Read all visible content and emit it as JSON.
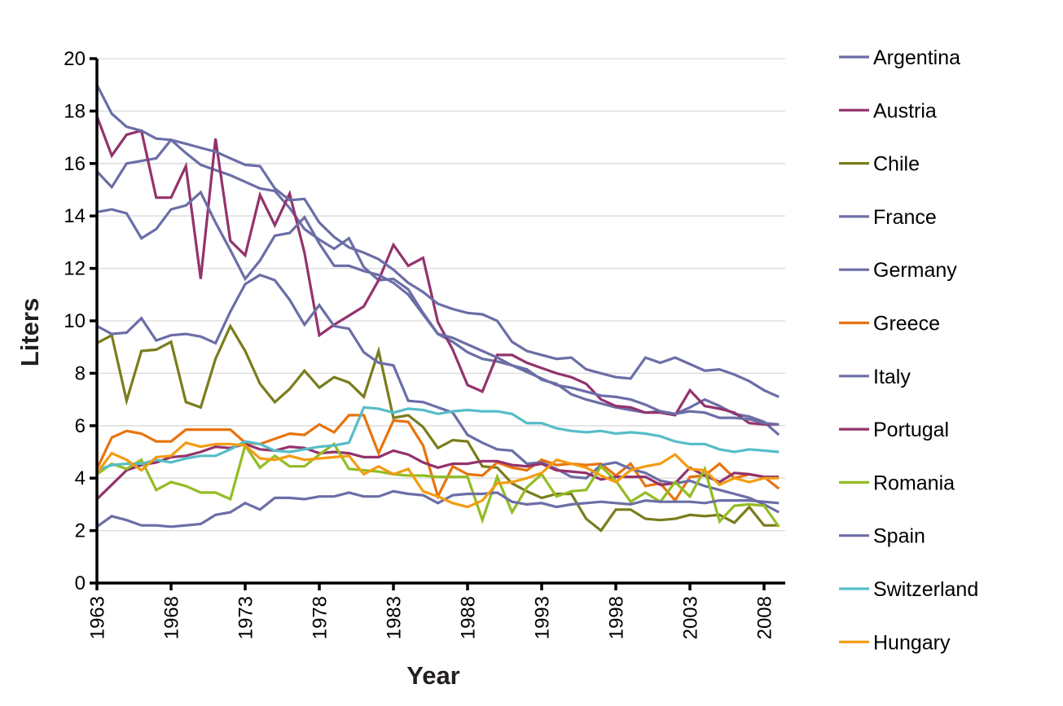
{
  "chart_data": {
    "type": "line",
    "title": "",
    "xlabel": "Year",
    "ylabel": "Liters",
    "ylim": [
      0,
      20
    ],
    "yticks": [
      0,
      2,
      4,
      6,
      8,
      10,
      12,
      14,
      16,
      18,
      20
    ],
    "xticks": [
      1963,
      1968,
      1973,
      1978,
      1983,
      1988,
      1993,
      1998,
      2003,
      2008
    ],
    "grid": "horizontal",
    "legend_position": "right",
    "x": [
      1963,
      1964,
      1965,
      1966,
      1967,
      1968,
      1969,
      1970,
      1971,
      1972,
      1973,
      1974,
      1975,
      1976,
      1977,
      1978,
      1979,
      1980,
      1981,
      1982,
      1983,
      1984,
      1985,
      1986,
      1987,
      1988,
      1989,
      1990,
      1991,
      1992,
      1993,
      1994,
      1995,
      1996,
      1997,
      1998,
      1999,
      2000,
      2001,
      2002,
      2003,
      2004,
      2005,
      2006,
      2007,
      2008,
      2009
    ],
    "series": [
      {
        "name": "Argentina",
        "color": "#6b6ea6",
        "values": [
          15.7,
          15.1,
          16.0,
          16.1,
          16.2,
          16.9,
          16.4,
          15.95,
          15.75,
          15.55,
          15.3,
          15.05,
          14.95,
          14.3,
          13.5,
          13.1,
          12.75,
          13.15,
          12.05,
          11.55,
          11.6,
          11.2,
          10.3,
          9.5,
          9.2,
          8.8,
          8.55,
          8.45,
          8.3,
          8.15,
          7.75,
          7.6,
          7.2,
          7.0,
          6.85,
          6.7,
          6.6,
          6.5,
          6.55,
          6.45,
          6.7,
          7.0,
          6.75,
          6.45,
          6.35,
          6.15,
          5.65
        ]
      },
      {
        "name": "Austria",
        "color": "#93336c",
        "values": [
          17.8,
          16.3,
          17.1,
          17.25,
          14.7,
          14.7,
          15.9,
          11.6,
          16.95,
          13.05,
          12.5,
          14.8,
          13.65,
          14.85,
          12.6,
          9.45,
          9.85,
          10.2,
          10.55,
          11.55,
          12.9,
          12.1,
          12.4,
          9.95,
          8.9,
          7.55,
          7.3,
          8.7,
          8.7,
          8.4,
          8.2,
          8.0,
          7.85,
          7.6,
          7.0,
          6.75,
          6.7,
          6.5,
          6.5,
          6.4,
          7.35,
          6.75,
          6.65,
          6.5,
          6.1,
          6.05,
          6.05
        ]
      },
      {
        "name": "Chile",
        "color": "#7a7d1b",
        "values": [
          9.15,
          9.45,
          6.95,
          8.85,
          8.9,
          9.2,
          6.9,
          6.7,
          8.55,
          9.8,
          8.85,
          7.6,
          6.9,
          7.4,
          8.1,
          7.45,
          7.85,
          7.65,
          7.1,
          8.85,
          6.3,
          6.4,
          5.95,
          5.15,
          5.45,
          5.4,
          4.45,
          4.4,
          3.8,
          3.5,
          3.25,
          3.4,
          3.4,
          2.45,
          2.0,
          2.8,
          2.8,
          2.45,
          2.4,
          2.45,
          2.6,
          2.55,
          2.6,
          2.3,
          2.9,
          2.2,
          2.2
        ]
      },
      {
        "name": "France",
        "color": "#6b6ea6",
        "values": [
          19.0,
          17.9,
          17.4,
          17.25,
          16.95,
          16.9,
          16.75,
          16.6,
          16.45,
          16.2,
          15.95,
          15.9,
          15.05,
          14.6,
          14.65,
          13.75,
          13.2,
          12.8,
          12.6,
          12.35,
          11.95,
          11.45,
          11.1,
          10.65,
          10.45,
          10.3,
          10.25,
          10.0,
          9.2,
          8.85,
          8.7,
          8.55,
          8.6,
          8.15,
          8.0,
          7.85,
          7.8,
          8.6,
          8.4,
          8.6,
          8.35,
          8.1,
          8.15,
          7.95,
          7.7,
          7.35,
          7.1
        ]
      },
      {
        "name": "Germany",
        "color": "#6b6ea6",
        "values": [
          14.15,
          14.25,
          14.1,
          13.15,
          13.5,
          14.25,
          14.4,
          14.9,
          13.75,
          12.7,
          11.6,
          12.3,
          13.25,
          13.35,
          13.95,
          12.95,
          12.1,
          12.1,
          11.9,
          11.75,
          11.45,
          11.0,
          10.25,
          9.5,
          9.35,
          9.1,
          8.85,
          8.6,
          8.3,
          8.05,
          7.8,
          7.55,
          7.45,
          7.3,
          7.15,
          7.1,
          7.0,
          6.8,
          6.55,
          6.45,
          6.55,
          6.5,
          6.3,
          6.3,
          6.25,
          6.1,
          6.05
        ]
      },
      {
        "name": "Greece",
        "color": "#e8730e",
        "values": [
          4.35,
          5.55,
          5.8,
          5.7,
          5.4,
          5.4,
          5.85,
          5.85,
          5.85,
          5.85,
          5.35,
          5.3,
          5.5,
          5.7,
          5.65,
          6.05,
          5.75,
          6.4,
          6.4,
          4.95,
          6.2,
          6.15,
          5.25,
          3.3,
          4.45,
          4.15,
          4.1,
          4.6,
          4.4,
          4.3,
          4.7,
          4.5,
          4.55,
          4.5,
          4.55,
          4.1,
          4.55,
          3.7,
          3.8,
          3.15,
          4.05,
          4.1,
          4.55,
          4.0,
          4.15,
          4.05,
          3.6
        ]
      },
      {
        "name": "Italy",
        "color": "#6b6ea6",
        "values": [
          9.8,
          9.5,
          9.55,
          10.1,
          9.25,
          9.45,
          9.5,
          9.4,
          9.15,
          10.35,
          11.4,
          11.75,
          11.55,
          10.8,
          9.85,
          10.6,
          9.8,
          9.7,
          8.8,
          8.4,
          8.3,
          6.95,
          6.9,
          6.7,
          6.5,
          5.65,
          5.35,
          5.1,
          5.05,
          4.55,
          4.6,
          4.35,
          4.05,
          4.0,
          4.5,
          4.6,
          4.35,
          4.2,
          3.9,
          3.8,
          3.9,
          3.7,
          3.55,
          3.4,
          3.25,
          3.0,
          2.7
        ]
      },
      {
        "name": "Portugal",
        "color": "#93336c",
        "values": [
          3.2,
          3.75,
          4.3,
          4.5,
          4.6,
          4.8,
          4.85,
          5.0,
          5.2,
          5.15,
          5.3,
          5.1,
          5.05,
          5.2,
          5.15,
          4.95,
          5.0,
          4.95,
          4.8,
          4.8,
          5.05,
          4.9,
          4.6,
          4.4,
          4.55,
          4.55,
          4.65,
          4.65,
          4.5,
          4.45,
          4.55,
          4.3,
          4.25,
          4.2,
          3.95,
          4.05,
          4.05,
          4.05,
          3.75,
          3.8,
          4.4,
          4.1,
          3.85,
          4.2,
          4.15,
          4.05,
          4.05
        ]
      },
      {
        "name": "Romania",
        "color": "#93bc24",
        "values": [
          4.15,
          4.55,
          4.35,
          4.7,
          3.55,
          3.85,
          3.7,
          3.45,
          3.45,
          3.2,
          5.25,
          4.4,
          4.85,
          4.45,
          4.45,
          4.9,
          5.3,
          4.35,
          4.3,
          4.25,
          4.15,
          4.1,
          4.1,
          4.05,
          4.05,
          4.05,
          2.4,
          4.05,
          2.7,
          3.65,
          4.15,
          3.3,
          3.5,
          3.55,
          4.45,
          3.9,
          3.1,
          3.45,
          3.1,
          3.85,
          3.3,
          4.35,
          2.35,
          2.95,
          3.0,
          2.95,
          2.15
        ]
      },
      {
        "name": "Spain",
        "color": "#6b6ea6",
        "values": [
          2.15,
          2.55,
          2.4,
          2.2,
          2.2,
          2.15,
          2.2,
          2.25,
          2.6,
          2.7,
          3.05,
          2.8,
          3.25,
          3.25,
          3.2,
          3.3,
          3.3,
          3.45,
          3.3,
          3.3,
          3.5,
          3.4,
          3.35,
          3.05,
          3.35,
          3.4,
          3.4,
          3.45,
          3.1,
          3.0,
          3.05,
          2.9,
          3.0,
          3.05,
          3.1,
          3.05,
          3.0,
          3.15,
          3.1,
          3.1,
          3.1,
          3.05,
          3.15,
          3.15,
          3.15,
          3.1,
          3.05
        ]
      },
      {
        "name": "Switzerland",
        "color": "#56bdc8",
        "values": [
          4.3,
          4.5,
          4.55,
          4.55,
          4.7,
          4.6,
          4.75,
          4.85,
          4.85,
          5.1,
          5.4,
          5.3,
          5.05,
          5.0,
          5.1,
          5.2,
          5.25,
          5.35,
          6.7,
          6.65,
          6.5,
          6.65,
          6.6,
          6.45,
          6.55,
          6.6,
          6.55,
          6.55,
          6.45,
          6.1,
          6.1,
          5.9,
          5.8,
          5.75,
          5.8,
          5.7,
          5.75,
          5.7,
          5.6,
          5.4,
          5.3,
          5.3,
          5.1,
          5.0,
          5.1,
          5.05,
          5.0
        ]
      },
      {
        "name": "Hungary",
        "color": "#f39c12",
        "values": [
          4.2,
          4.95,
          4.7,
          4.3,
          4.8,
          4.85,
          5.35,
          5.2,
          5.3,
          5.3,
          5.25,
          4.75,
          4.7,
          4.85,
          4.7,
          4.75,
          4.8,
          4.85,
          4.15,
          4.45,
          4.15,
          4.35,
          3.5,
          3.3,
          3.05,
          2.9,
          3.15,
          3.8,
          3.85,
          4.0,
          4.2,
          4.7,
          4.55,
          4.4,
          4.1,
          3.85,
          4.3,
          4.45,
          4.55,
          4.9,
          4.35,
          4.3,
          3.75,
          4.0,
          3.85,
          4.0,
          4.0
        ]
      }
    ]
  }
}
